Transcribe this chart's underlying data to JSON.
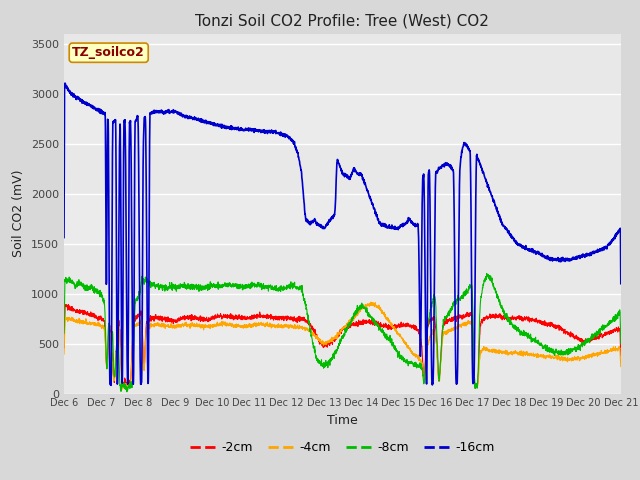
{
  "title": "Tonzi Soil CO2 Profile: Tree (West) CO2",
  "ylabel": "Soil CO2 (mV)",
  "xlabel": "Time",
  "box_label": "TZ_soilco2",
  "ylim": [
    0,
    3600
  ],
  "yticks": [
    0,
    500,
    1000,
    1500,
    2000,
    2500,
    3000,
    3500
  ],
  "xtick_labels": [
    "Dec 6",
    "Dec 7",
    "Dec 8",
    "Dec 9",
    "Dec 10",
    "Dec 11",
    "Dec 12",
    "Dec 13",
    "Dec 14",
    "Dec 15",
    "Dec 16",
    "Dec 17",
    "Dec 18",
    "Dec 19",
    "Dec 20",
    "Dec 21"
  ],
  "fig_bg": "#d8d8d8",
  "plot_bg": "#e8e8e8",
  "grid_color": "#ffffff",
  "legend_entries": [
    "-2cm",
    "-4cm",
    "-8cm",
    "-16cm"
  ],
  "legend_colors": [
    "#ff0000",
    "#ffa500",
    "#00bb00",
    "#0000cc"
  ],
  "title_fontsize": 11,
  "label_fontsize": 9,
  "tick_fontsize": 8
}
